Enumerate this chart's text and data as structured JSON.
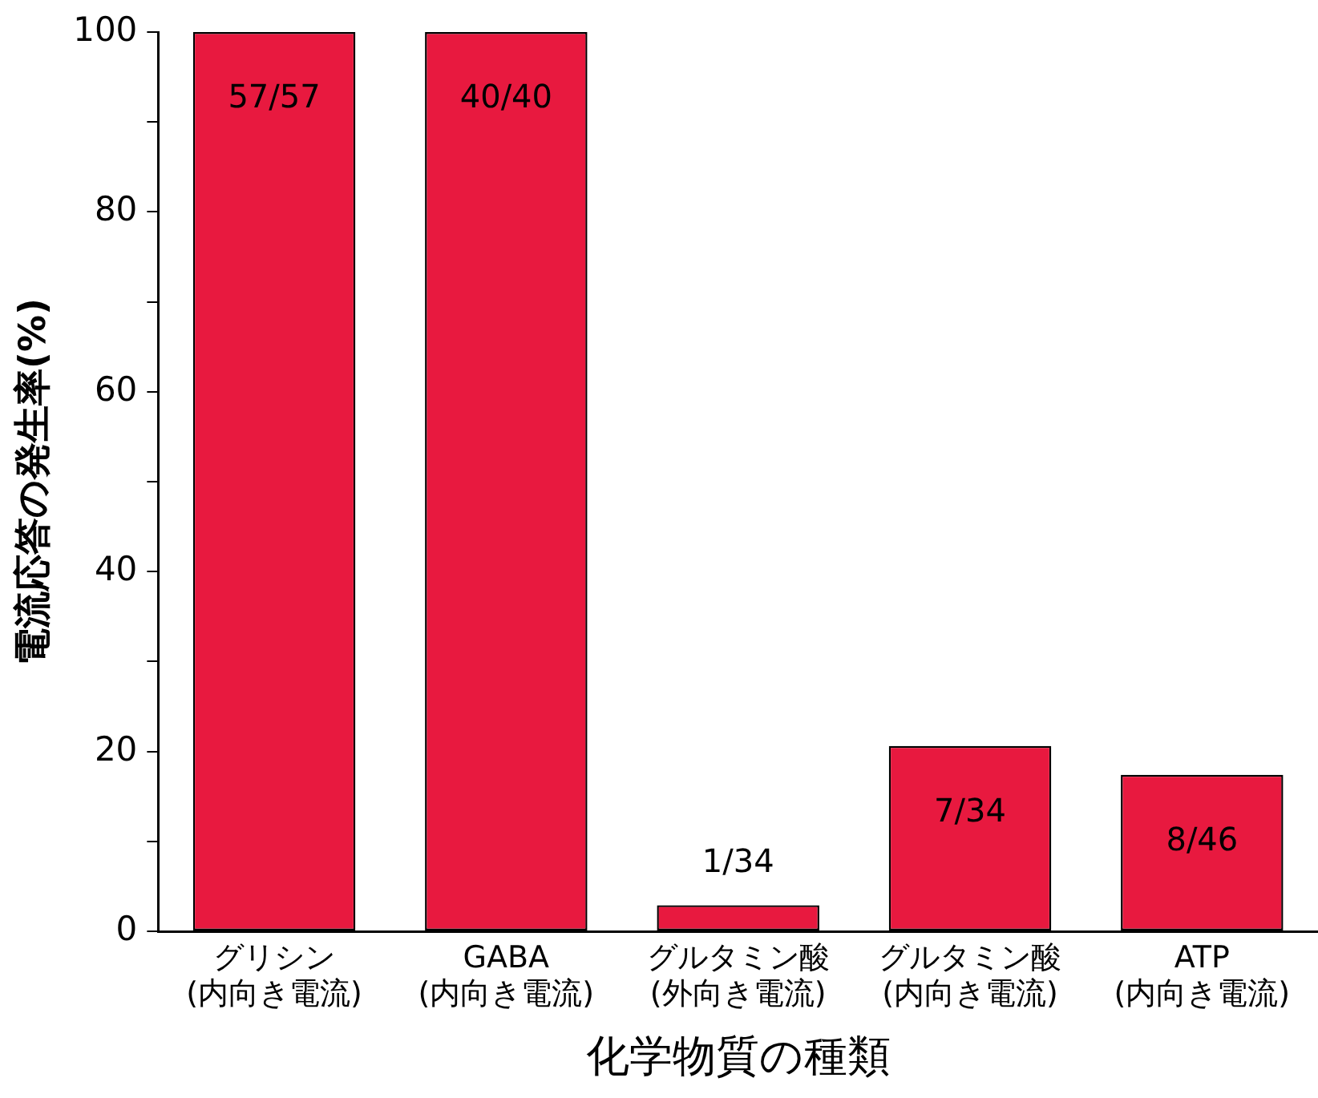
{
  "chart_data": {
    "type": "bar",
    "xlabel": "化学物質の種類",
    "ylabel": "電流応答の発生率(%)",
    "categories": [
      "グリシン\n(内向き電流)",
      "GABA\n(内向き電流)",
      "グルタミン酸\n(外向き電流)",
      "グルタミン酸\n(内向き電流)",
      "ATP\n(内向き電流)"
    ],
    "values": [
      100,
      100,
      2.9,
      20.6,
      17.4
    ],
    "value_labels": [
      "57/57",
      "40/40",
      "1/34",
      "7/34",
      "8/46"
    ],
    "color": "#e8193f",
    "ylim": [
      0,
      100
    ],
    "yticks": [
      0,
      {
        "value": 10,
        "label": null
      },
      20,
      {
        "value": 30,
        "label": null
      },
      40,
      {
        "value": 50,
        "label": null
      },
      60,
      {
        "value": 70,
        "label": null
      },
      80,
      {
        "value": 90,
        "label": null
      },
      100
    ],
    "grid": false,
    "legend": false
  }
}
